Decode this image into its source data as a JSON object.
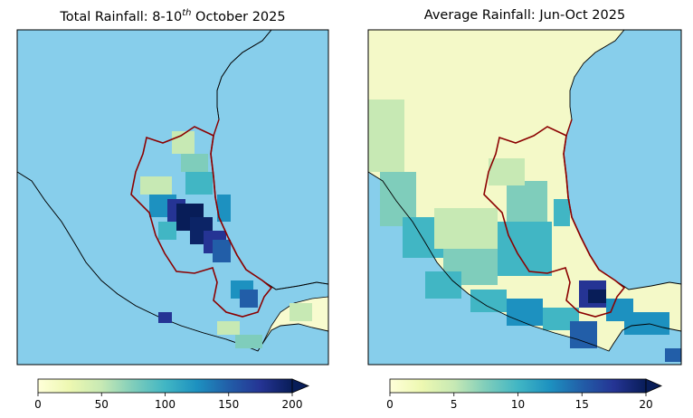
{
  "panels": [
    {
      "title_prefix": "Total Rainfall: 8-10",
      "title_sup": "th",
      "title_suffix": " October 2025",
      "colorbar": {
        "ticks": [
          "0",
          "50",
          "100",
          "150",
          "200"
        ],
        "vmin": 0,
        "vmax": 200,
        "extend": "max"
      },
      "peak_region": "central-east coast"
    },
    {
      "title": "Average Rainfall: Jun-Oct 2025",
      "colorbar": {
        "ticks": [
          "0",
          "5",
          "10",
          "15",
          "20"
        ],
        "vmin": 0,
        "vmax": 20,
        "extend": "max"
      },
      "peak_region": "southern isthmus"
    }
  ],
  "colors": {
    "ocean": "#87ceeb",
    "land_low": "#fcfdd4",
    "land_high": "#0a1f5e",
    "region_outline": "#8b0000",
    "coastline": "#000000",
    "colormap": "YlGnBu"
  }
}
